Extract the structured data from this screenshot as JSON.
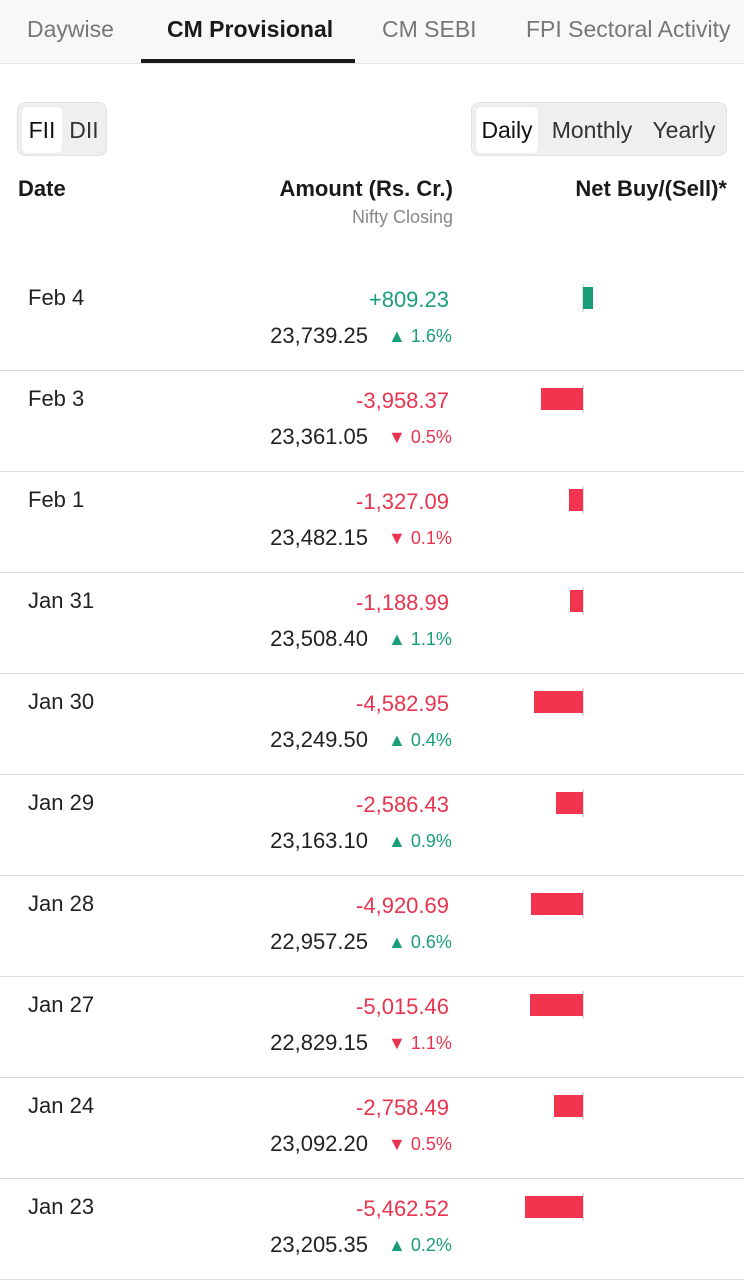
{
  "tabs": [
    "Daywise",
    "CM Provisional",
    "CM SEBI",
    "FPI Sectoral Activity"
  ],
  "investor_toggle": [
    "FII",
    "DII"
  ],
  "period_toggle": [
    "Daily",
    "Monthly",
    "Yearly"
  ],
  "columns": {
    "date": "Date",
    "amount": "Amount (Rs. Cr.)",
    "amount_sub": "Nifty Closing",
    "net": "Net Buy/(Sell)*"
  },
  "colors": {
    "positive": "#1a9e77",
    "negative": "#f3344f"
  },
  "rows": [
    {
      "date": "Feb 4",
      "amount": "+809.23",
      "closing": "23,739.25",
      "change": "▲ 1.6%",
      "amount_value": 809.23,
      "change_up": true
    },
    {
      "date": "Feb 3",
      "amount": "-3,958.37",
      "closing": "23,361.05",
      "change": "▼ 0.5%",
      "amount_value": -3958.37,
      "change_up": false
    },
    {
      "date": "Feb 1",
      "amount": "-1,327.09",
      "closing": "23,482.15",
      "change": "▼ 0.1%",
      "amount_value": -1327.09,
      "change_up": false
    },
    {
      "date": "Jan 31",
      "amount": "-1,188.99",
      "closing": "23,508.40",
      "change": "▲ 1.1%",
      "amount_value": -1188.99,
      "change_up": true
    },
    {
      "date": "Jan 30",
      "amount": "-4,582.95",
      "closing": "23,249.50",
      "change": "▲ 0.4%",
      "amount_value": -4582.95,
      "change_up": true
    },
    {
      "date": "Jan 29",
      "amount": "-2,586.43",
      "closing": "23,163.10",
      "change": "▲ 0.9%",
      "amount_value": -2586.43,
      "change_up": true
    },
    {
      "date": "Jan 28",
      "amount": "-4,920.69",
      "closing": "22,957.25",
      "change": "▲ 0.6%",
      "amount_value": -4920.69,
      "change_up": true
    },
    {
      "date": "Jan 27",
      "amount": "-5,015.46",
      "closing": "22,829.15",
      "change": "▼ 1.1%",
      "amount_value": -5015.46,
      "change_up": false
    },
    {
      "date": "Jan 24",
      "amount": "-2,758.49",
      "closing": "23,092.20",
      "change": "▼ 0.5%",
      "amount_value": -2758.49,
      "change_up": false
    },
    {
      "date": "Jan 23",
      "amount": "-5,462.52",
      "closing": "23,205.35",
      "change": "▲ 0.2%",
      "amount_value": -5462.52,
      "change_up": true
    }
  ]
}
